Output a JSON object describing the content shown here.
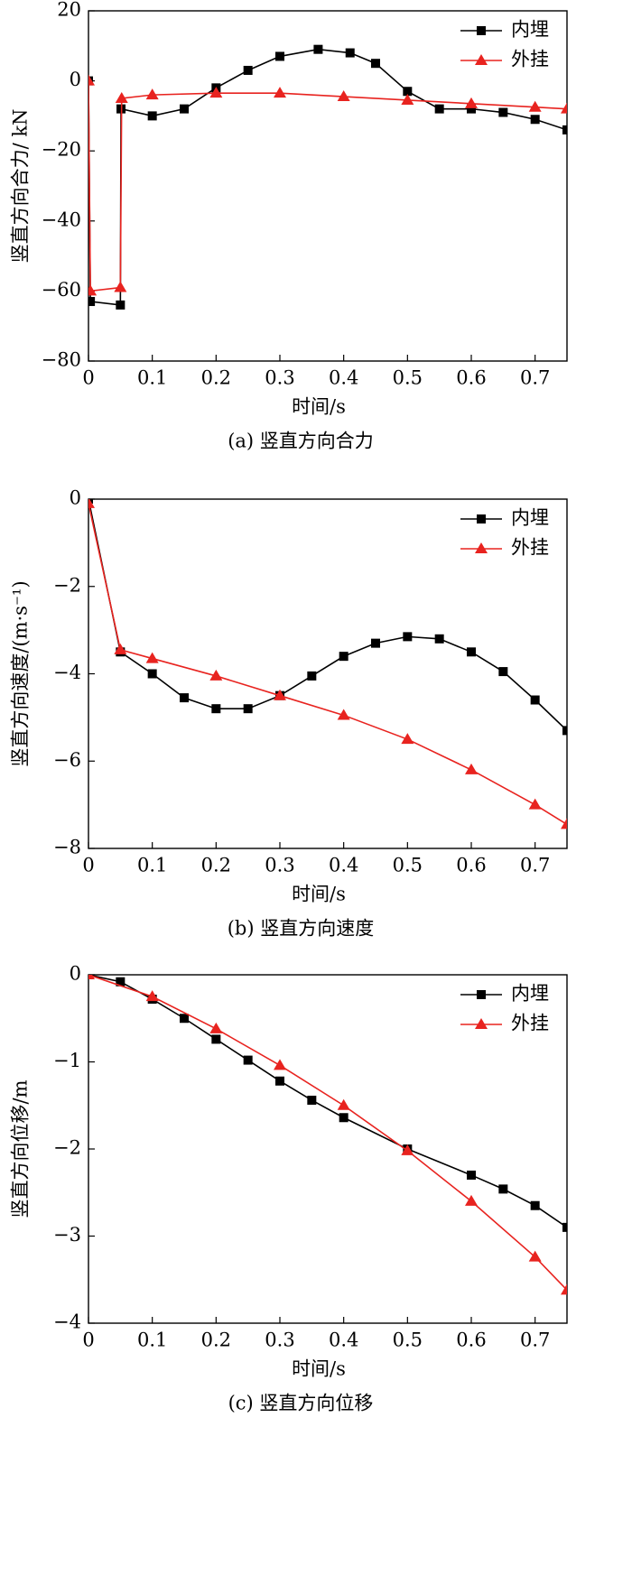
{
  "chart_data": [
    {
      "type": "line",
      "ylabel": "竖直方向合力/ kN",
      "xlabel": "时间/s",
      "caption": "(a) 竖直方向合力",
      "xlim": [
        0,
        0.75
      ],
      "xticks": [
        0,
        0.1,
        0.2,
        0.3,
        0.4,
        0.5,
        0.6,
        0.7
      ],
      "ylim": [
        -80,
        20
      ],
      "yticks": [
        20,
        0,
        {
          "value": -20,
          "label": "−20"
        },
        {
          "value": -40,
          "label": "−40"
        },
        {
          "value": -60,
          "label": "−60"
        },
        {
          "value": -80,
          "label": "−80"
        }
      ],
      "legend": "upper right",
      "series": [
        {
          "name": "内埋",
          "color": "#000000",
          "marker": "square",
          "x": [
            0,
            0.003,
            0.05,
            0.051,
            0.1,
            0.15,
            0.2,
            0.25,
            0.3,
            0.36,
            0.41,
            0.45,
            0.5,
            0.55,
            0.6,
            0.65,
            0.7,
            0.75
          ],
          "values": [
            0,
            -63,
            -64,
            -8,
            -10,
            -8,
            -2,
            3,
            7,
            9,
            8,
            5,
            -3,
            -8,
            -8,
            -9,
            -11,
            -14
          ]
        },
        {
          "name": "外挂",
          "color": "#e8231f",
          "marker": "triangle",
          "x": [
            0,
            0.003,
            0.05,
            0.052,
            0.1,
            0.2,
            0.3,
            0.4,
            0.5,
            0.6,
            0.7,
            0.75
          ],
          "values": [
            0,
            -60,
            -59,
            -5,
            -4,
            -3.5,
            -3.5,
            -4.5,
            -5.5,
            -6.5,
            -7.5,
            -8
          ]
        }
      ]
    },
    {
      "type": "line",
      "ylabel": "竖直方向速度/(m·s⁻¹)",
      "xlabel": "时间/s",
      "caption": "(b) 竖直方向速度",
      "xlim": [
        0,
        0.75
      ],
      "xticks": [
        0,
        0.1,
        0.2,
        0.3,
        0.4,
        0.5,
        0.6,
        0.7
      ],
      "ylim": [
        -8,
        0
      ],
      "yticks": [
        0,
        {
          "value": -2,
          "label": "−2"
        },
        {
          "value": -4,
          "label": "−4"
        },
        {
          "value": -6,
          "label": "−6"
        },
        {
          "value": -8,
          "label": "−8"
        }
      ],
      "legend": "upper right",
      "series": [
        {
          "name": "内埋",
          "color": "#000000",
          "marker": "square",
          "x": [
            0,
            0.05,
            0.1,
            0.15,
            0.2,
            0.25,
            0.3,
            0.35,
            0.4,
            0.45,
            0.5,
            0.55,
            0.6,
            0.65,
            0.7,
            0.75
          ],
          "values": [
            0,
            -3.5,
            -4.0,
            -4.55,
            -4.8,
            -4.8,
            -4.5,
            -4.05,
            -3.6,
            -3.3,
            -3.15,
            -3.2,
            -3.5,
            -3.95,
            -4.6,
            -5.3
          ]
        },
        {
          "name": "外挂",
          "color": "#e8231f",
          "marker": "triangle",
          "x": [
            0,
            0.05,
            0.1,
            0.2,
            0.3,
            0.4,
            0.5,
            0.6,
            0.7,
            0.75
          ],
          "values": [
            -0.1,
            -3.45,
            -3.65,
            -4.05,
            -4.5,
            -4.95,
            -5.5,
            -6.2,
            -7.0,
            -7.45
          ]
        }
      ]
    },
    {
      "type": "line",
      "ylabel": "竖直方向位移/m",
      "xlabel": "时间/s",
      "caption": "(c) 竖直方向位移",
      "xlim": [
        0,
        0.75
      ],
      "xticks": [
        0,
        0.1,
        0.2,
        0.3,
        0.4,
        0.5,
        0.6,
        0.7
      ],
      "ylim": [
        -4,
        0
      ],
      "yticks": [
        0,
        {
          "value": -1,
          "label": "−1"
        },
        {
          "value": -2,
          "label": "−2"
        },
        {
          "value": -3,
          "label": "−3"
        },
        {
          "value": -4,
          "label": "−4"
        }
      ],
      "legend": "upper right",
      "series": [
        {
          "name": "内埋",
          "color": "#000000",
          "marker": "square",
          "x": [
            0,
            0.05,
            0.1,
            0.15,
            0.2,
            0.25,
            0.3,
            0.35,
            0.4,
            0.5,
            0.6,
            0.65,
            0.7,
            0.75
          ],
          "values": [
            0,
            -0.08,
            -0.28,
            -0.5,
            -0.74,
            -0.98,
            -1.22,
            -1.44,
            -1.64,
            -2.0,
            -2.3,
            -2.46,
            -2.65,
            -2.9
          ]
        },
        {
          "name": "外挂",
          "color": "#e8231f",
          "marker": "triangle",
          "x": [
            0,
            0.1,
            0.2,
            0.3,
            0.4,
            0.5,
            0.6,
            0.7,
            0.75
          ],
          "values": [
            0,
            -0.25,
            -0.62,
            -1.04,
            -1.5,
            -2.02,
            -2.6,
            -3.24,
            -3.62
          ]
        }
      ]
    }
  ]
}
